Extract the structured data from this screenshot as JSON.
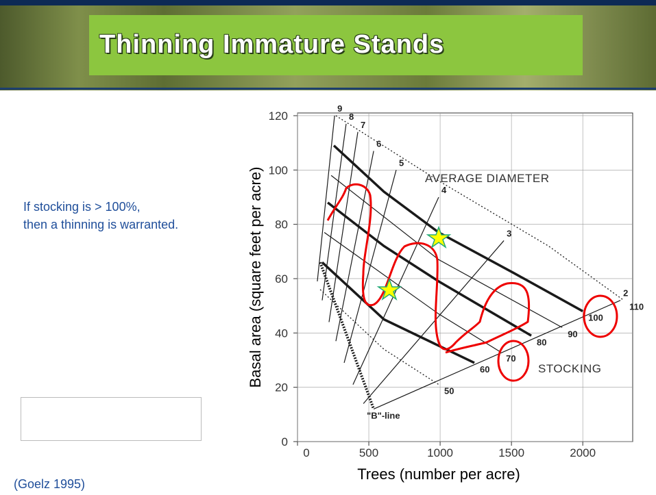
{
  "slide": {
    "title": "Thinning Immature Stands",
    "note": [
      "If stocking is > 100%,",
      "then a thinning is warranted."
    ],
    "citation": "(Goelz 1995)"
  },
  "chart_data": {
    "type": "line",
    "xlabel": "Trees (number per acre)",
    "ylabel": "Basal area (square feet per acre)",
    "xlim": [
      0,
      2350
    ],
    "ylim": [
      0,
      121
    ],
    "xticks": [
      0,
      500,
      1000,
      1500,
      2000
    ],
    "yticks": [
      0,
      20,
      40,
      60,
      80,
      100,
      120
    ],
    "grid": true,
    "color": "#1a1a1a",
    "annotations": [
      "AVERAGE DIAMETER",
      "STOCKING"
    ],
    "series": [
      {
        "name": "9",
        "style": "thin",
        "x": [
          260,
          139
        ],
        "y": [
          120,
          59
        ]
      },
      {
        "name": "8",
        "style": "thin",
        "x": [
          341,
          173
        ],
        "y": [
          117,
          52
        ]
      },
      {
        "name": "7",
        "style": "thin",
        "x": [
          423,
          221
        ],
        "y": [
          114,
          44
        ]
      },
      {
        "name": "6",
        "style": "thin",
        "x": [
          534,
          269
        ],
        "y": [
          107,
          37
        ]
      },
      {
        "name": "5",
        "style": "thin",
        "x": [
          692,
          327
        ],
        "y": [
          100,
          29
        ]
      },
      {
        "name": "4",
        "style": "thin",
        "x": [
          990,
          389
        ],
        "y": [
          90,
          21
        ]
      },
      {
        "name": "3",
        "style": "thin",
        "x": [
          1447,
          462
        ],
        "y": [
          74,
          14
        ]
      },
      {
        "name": "2",
        "style": "thin",
        "x": [
          2264,
          534
        ],
        "y": [
          52,
          12
        ]
      },
      {
        "name": "110",
        "style": "dotted",
        "x": [
          269,
          990,
          1760,
          2288
        ],
        "y": [
          120,
          96,
          72,
          52
        ]
      },
      {
        "name": "100",
        "style": "thick",
        "x": [
          255,
          606,
          990,
          1519,
          2000
        ],
        "y": [
          109,
          92,
          77,
          62,
          48
        ]
      },
      {
        "name": "90",
        "style": "thin",
        "x": [
          236,
          990,
          1856
        ],
        "y": [
          98,
          67,
          42
        ]
      },
      {
        "name": "80",
        "style": "thick",
        "x": [
          212,
          606,
          990,
          1639
        ],
        "y": [
          88,
          72,
          59,
          39
        ]
      },
      {
        "name": "70",
        "style": "thin",
        "x": [
          188,
          990,
          1423
        ],
        "y": [
          77,
          47,
          33
        ]
      },
      {
        "name": "60",
        "style": "thick",
        "x": [
          173,
          606,
          1240
        ],
        "y": [
          66,
          45,
          29
        ]
      },
      {
        "name": "50",
        "style": "dotted",
        "x": [
          159,
          606,
          990
        ],
        "y": [
          56,
          34,
          21
        ]
      },
      {
        "name": "\"B\"-line",
        "style": "dashed",
        "x": [
          159,
          534
        ],
        "y": [
          66,
          12
        ]
      }
    ]
  }
}
